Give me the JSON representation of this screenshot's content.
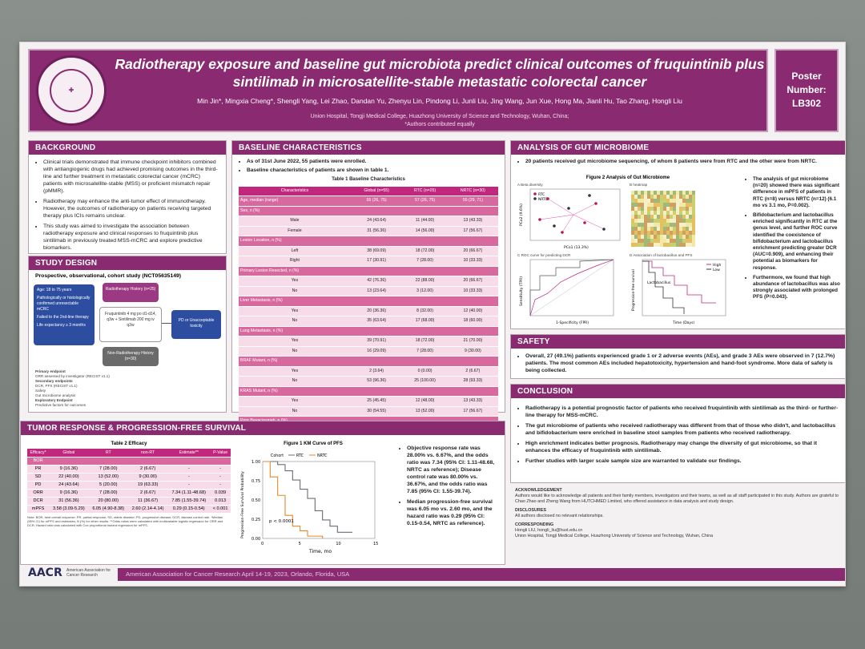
{
  "header": {
    "title": "Radiotherapy exposure and baseline gut microbiota predict clinical outcomes of fruquintinib plus sintilimab in microsatellite-stable metastatic colorectal cancer",
    "authors": "Min Jin*, Mingxia Cheng*, Shengli Yang, Lei Zhao, Dandan Yu, Zhenyu Lin, Pindong Li, Junli Liu, Jing Wang, Jun Xue, Hong Ma, Jianli Hu, Tao Zhang, Hongli Liu",
    "affiliation": "Union Hospital, Tongji Medical College, Huazhong University of Science and Technology, Wuhan, China;",
    "equal": "*Authors contributed equally",
    "logo_text": "WUHAN UNION HOSPITAL OF CHINA",
    "poster_number_label": "Poster Number:",
    "poster_number": "LB302"
  },
  "background": {
    "heading": "BACKGROUND",
    "items": [
      "Clinical trials demonstrated that immune checkpoint inhibitors combined with antiangiogenic drugs had achieved promising outcomes in the third-line and further treatment in metastatic colorectal cancer (mCRC) patients with microsatellite-stable (MSS) or proficient mismatch repair (pMMR).",
      "Radiotherapy may enhance the anti-tumor effect of immunotherapy. However, the outcomes of radiotherapy on patients receiving targeted therapy plus ICIs remains unclear.",
      "This study was aimed to investigate the association between radiotherapy exposure and clinical responses to fruquintinib plus sintilimab in previously treated MSS-mCRC and explore predictive biomarkers."
    ]
  },
  "study_design": {
    "heading": "STUDY DESIGN",
    "subtitle": "Prospective, observational, cohort study (NCT05635149)",
    "criteria": [
      "Age: 18 to 75 years",
      "Pathologically or histologically confirmed unresectable mCRC",
      "Failed to the 2nd-line therapy",
      "Life expectancy ≥ 3 months"
    ],
    "rt_box": "Radiotherapy History (n=25)",
    "drug_box": "Fruquintinib 4 mg po d1-d14, q3w + Sintilimab 200 mg iv q3w",
    "nrt_box": "Non-Radiotherapy History (n=30)",
    "end_box": "PD or Unacceptable toxicity",
    "endpoints": "Primary endpoint",
    "endpoint_items": [
      "ORR assessed by investigator (RECIST v1.1)",
      "Secondary endpoints",
      "DCR, PFS (RECIST v1.1)",
      "Safety",
      "Gut microbiome analysis",
      "Exploratory Endpoint",
      "Predictive factors for outcomes"
    ]
  },
  "baseline": {
    "heading": "BASELINE CHARACTERISTICS",
    "bullets": [
      "As of 31st June 2022, 55 patients were enrolled.",
      "Baseline characteristics of patients are shown in table 1."
    ],
    "table_title": "Table 1 Baseline Characteristics",
    "columns": [
      "Characteristics",
      "Global (n=55)",
      "RTC (n=25)",
      "NRTC (n=30)"
    ],
    "rows": [
      [
        "Age, median (range)",
        "55 (26, 75)",
        "57 (26, 75)",
        "55 (29, 71)",
        "sub"
      ],
      [
        "Sex, n (%)",
        "",
        "",
        "",
        "sub"
      ],
      [
        "Male",
        "24 (43.64)",
        "11 (44.00)",
        "13 (43.33)",
        "row"
      ],
      [
        "Female",
        "31 (56.36)",
        "14 (56.00)",
        "17 (56.67)",
        "row"
      ],
      [
        "Lesion Location, n (%)",
        "",
        "",
        "",
        "sub"
      ],
      [
        "Left",
        "38 (69.09)",
        "18 (72.00)",
        "20 (66.67)",
        "row"
      ],
      [
        "Right",
        "17 (30.91)",
        "7 (28.00)",
        "10 (33.33)",
        "row"
      ],
      [
        "Primary Lesion Resected, n (%)",
        "",
        "",
        "",
        "sub"
      ],
      [
        "Yes",
        "42 (76.36)",
        "22 (88.00)",
        "20 (66.67)",
        "row"
      ],
      [
        "No",
        "13 (23.64)",
        "3 (12.00)",
        "10 (33.33)",
        "row"
      ],
      [
        "Liver Metastasis, n (%)",
        "",
        "",
        "",
        "sub"
      ],
      [
        "Yes",
        "20 (36.36)",
        "8 (32.00)",
        "12 (40.00)",
        "row"
      ],
      [
        "No",
        "35 (63.64)",
        "17 (68.00)",
        "18 (60.00)",
        "row"
      ],
      [
        "Lung Metastasis, n (%)",
        "",
        "",
        "",
        "sub"
      ],
      [
        "Yes",
        "39 (70.91)",
        "18 (72.00)",
        "21 (70.00)",
        "row"
      ],
      [
        "No",
        "16 (29.09)",
        "7 (28.00)",
        "9 (30.00)",
        "row"
      ],
      [
        "BRAF Mutant, n (%)",
        "",
        "",
        "",
        "sub"
      ],
      [
        "Yes",
        "2 (3.64)",
        "0 (0.00)",
        "2 (6.67)",
        "row"
      ],
      [
        "No",
        "53 (96.36)",
        "25 (100.00)",
        "28 (93.33)",
        "row"
      ],
      [
        "KRAS Mutant, n (%)",
        "",
        "",
        "",
        "sub"
      ],
      [
        "Yes",
        "25 (45.45)",
        "12 (48.00)",
        "13 (43.33)",
        "row"
      ],
      [
        "No",
        "30 (54.55)",
        "13 (52.00)",
        "17 (56.67)",
        "row"
      ],
      [
        "Prior Bevacizumab, n (%)",
        "",
        "",
        "",
        "sub"
      ],
      [
        "Yes",
        "40 (72.73)",
        "15 (60.00)",
        "25 (83.33)",
        "row"
      ],
      [
        "No",
        "15 (27.27)",
        "10 (40.00)",
        "5 (16.67)",
        "row"
      ],
      [
        "Prior Cetuximab, n (%)",
        "",
        "",
        "",
        "sub"
      ],
      [
        "Yes",
        "18 (32.73)",
        "9 (36.00)",
        "9 (30.00)",
        "row"
      ],
      [
        "No",
        "37 (67.27)",
        "16 (64.00)",
        "21 (70.00)",
        "row"
      ]
    ],
    "note": "Note: RTC, radiotherapy cohort; NRTC, non-radiotherapy cohort;",
    "note2": "*All patients were non-MRAS mutant."
  },
  "microbiome": {
    "heading": "ANALYSIS OF GUT MICROBIOME",
    "intro": "20 patients received gut microbiome sequencing, of whom 8 patients were from RTC and the other were from NRTC.",
    "figure_title": "Figure 2 Analysis of Gut Microbiome",
    "panel_a": "A Beta diversity",
    "panel_b": "B heatmap",
    "panel_c": "C ROC curve for predicting DCR",
    "panel_d": "D Association of lactobacillus and PFS",
    "legend_rtc": "RTC",
    "legend_nrtc": "NRTC",
    "pca_x": "PCo1 (13.3%)",
    "pca_y": "PCo2 (9.6%)",
    "roc_x": "1-Specificity (FPR)",
    "roc_y": "Sensitivity (TPR)",
    "km_x": "Time (Days)",
    "km_y": "Progression-free survival",
    "km_label": "Lactobacillus",
    "km_high": "High",
    "km_low": "Low",
    "bullets": [
      "The analysis of gut microbiome (n=20) showed there was significant difference in mPFS of patients in RTC (n=8) versus NRTC (n=12) (6.1 mo vs 3.1 mo, P=0.002).",
      "Bifidobacterium and lactobacillus enriched significantly in RTC at the genus level, and further ROC curve identified the coexistence of bifidobacterium and lactobacillus enrichment predicting greater DCR (AUC=0.909), and enhancing their potential as biomarkers for response.",
      "Furthermore, we found that high abundance of lactobacillus was also strongly associated with prolonged PFS (P=0.043)."
    ]
  },
  "safety": {
    "heading": "SAFETY",
    "text": "Overall, 27 (49.1%) patients experienced grade 1 or 2 adverse events (AEs), and grade 3 AEs were observed in 7 (12.7%) patients. The most common AEs included hepatotoxicity, hypertension and hand-foot syndrome. More data of safety is being collected."
  },
  "conclusion": {
    "heading": "CONCLUSION",
    "items": [
      "Radiotherapy is a potential prognostic factor of patients who received fruquintinib with sintilimab as the third- or further-line therapy for MSS-mCRC.",
      "The gut microbiome of patients who received radiotherapy was different from that of those who didn't, and lactobacillus and bifidobacterium were enriched in baseline stool samples from patients who received radiotherapy.",
      "High enrichment indicates better prognosis. Radiotherapy may change the diversity of gut microbiome, so that it enhances the efficacy of fruquintinib with sintilimab.",
      "Further studies with larger scale sample size are warranted to validate our findings."
    ]
  },
  "ack": {
    "ack_heading": "ACKNOWLEDGEMENT",
    "ack_text": "Authors would like to acknowledge all patients and their family members, investigators and their teams, as well as all staff participated in this study. Authors are grateful to Chao Zhao and Zheng Wang from HUTCHMED Limited, who offered assistance in data analysis and study design.",
    "disc_heading": "DISCLOSURES",
    "disc_text": "All authors disclosed no relevant relationships.",
    "corr_heading": "CORRESPONDING",
    "corr_text": "Hongli LIU, hongli_liu@hust.edu.cn",
    "corr_addr": "Union Hospital, Tongji Medical College, Huazhong University of Science and Technology, Wuhan, China"
  },
  "tumor": {
    "heading": "TUMOR RESPONSE & PROGRESSION-FREE SURVIVAL",
    "table_title": "Table 2 Efficacy",
    "columns": [
      "Efficacy*",
      "Global",
      "RT",
      "non-RT",
      "Estimate**",
      "P-Value"
    ],
    "rows": [
      [
        "BOR",
        "",
        "",
        "",
        "",
        ""
      ],
      [
        "PR",
        "9 (16.36)",
        "7 (28.00)",
        "2 (6.67)",
        "-",
        "-"
      ],
      [
        "SD",
        "22 (40.00)",
        "13 (52.00)",
        "9 (30.00)",
        "-",
        "-"
      ],
      [
        "PD",
        "24 (43.64)",
        "5 (20.00)",
        "19 (63.33)",
        "-",
        "-"
      ],
      [
        "ORR",
        "9 (16.36)",
        "7 (28.00)",
        "2 (6.67)",
        "7.34 (1.11-48.68)",
        "0.039"
      ],
      [
        "DCR",
        "31 (56.36)",
        "20 (80.00)",
        "11 (36.67)",
        "7.85 (1.55-39.74)",
        "0.013"
      ],
      [
        "mPFS",
        "3.58 (3.09-5.29)",
        "6.05 (4.90-8.38)",
        "2.60 (2.14-4.14)",
        "0.29 (0.15-0.54)",
        "< 0.001"
      ]
    ],
    "note": "Note: BOR, best overall response; PR, partial response; SD, stable disease; PD, progressive disease; DCR, disease control rate. *Median (95% CI) for mPFS and estimates; N (%) for other results. **Odds ratios were calculated with multivariable logistic regression for ORR and DCR; Hazard ratio was calculated with Cox proportional hazard regression for mPFS.",
    "figure_title": "Figure 1 KM Curve of PFS",
    "km_legend": [
      "Cohort",
      "RTC",
      "NRTC"
    ],
    "km_p": "p < 0.0001",
    "km_xlabel": "Time, mo",
    "km_ylabel": "Progression-Free Survival Probability",
    "bullets": [
      "Objective response rate was 28.00% vs. 6.67%, and the odds ratio was 7.34 (95% CI: 1.11-48.68, NRTC as reference); Disease control rate was 80.00% vs. 36.67%, and the odds ratio was 7.85 (95% CI: 1.55-39.74).",
      "Median progression-free survival was 6.05 mo vs. 2.60 mo, and the hazard ratio was 0.29 (95% CI: 0.15-0.54, NRTC as reference)."
    ]
  },
  "footer": {
    "aacr": "AACR",
    "aacr_sub": "American Association for Cancer Research",
    "band": "American Association for Cancer Research April 14-19, 2023, Orlando, Florida, USA"
  },
  "chart_data": [
    {
      "type": "line",
      "title": "Figure 1 KM Curve of PFS",
      "xlabel": "Time, mo",
      "ylabel": "Progression-Free Survival Probability",
      "xlim": [
        0,
        15
      ],
      "ylim": [
        0,
        1
      ],
      "series": [
        {
          "name": "RTC",
          "x": [
            0,
            2,
            3,
            4,
            5,
            6,
            7,
            8,
            9,
            10,
            12
          ],
          "values": [
            1,
            0.96,
            0.88,
            0.76,
            0.64,
            0.52,
            0.36,
            0.24,
            0.16,
            0.08,
            0.08
          ]
        },
        {
          "name": "NRTC",
          "x": [
            0,
            1,
            2,
            3,
            4,
            5,
            6,
            8
          ],
          "values": [
            1,
            0.8,
            0.56,
            0.3,
            0.16,
            0.1,
            0.03,
            0.0
          ]
        }
      ]
    },
    {
      "type": "line",
      "title": "C ROC curve for predicting DCR",
      "xlabel": "1-Specificity (FPR)",
      "ylabel": "Sensitivity (TPR)",
      "xlim": [
        0,
        1
      ],
      "ylim": [
        0,
        1
      ]
    }
  ]
}
